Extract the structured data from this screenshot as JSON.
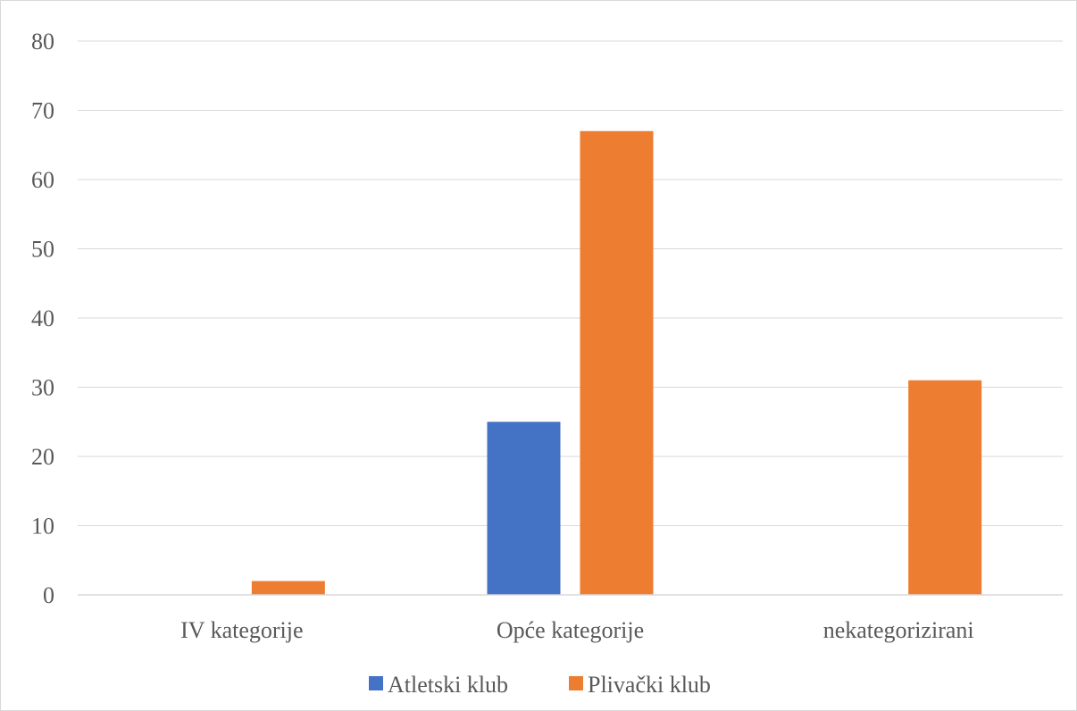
{
  "chart_data": {
    "type": "bar",
    "categories": [
      "IV kategorije",
      "Opće kategorije",
      "nekategorizirani"
    ],
    "series": [
      {
        "name": "Atletski klub",
        "values": [
          0,
          25,
          0
        ],
        "color": "#4472c4"
      },
      {
        "name": "Plivački klub",
        "values": [
          2,
          67,
          31
        ],
        "color": "#ed7d31"
      }
    ],
    "ylim": [
      0,
      80
    ],
    "yticks": [
      0,
      10,
      20,
      30,
      40,
      50,
      60,
      70,
      80
    ],
    "grid": true,
    "legend": "bottom",
    "title": "",
    "xlabel": "",
    "ylabel": ""
  }
}
